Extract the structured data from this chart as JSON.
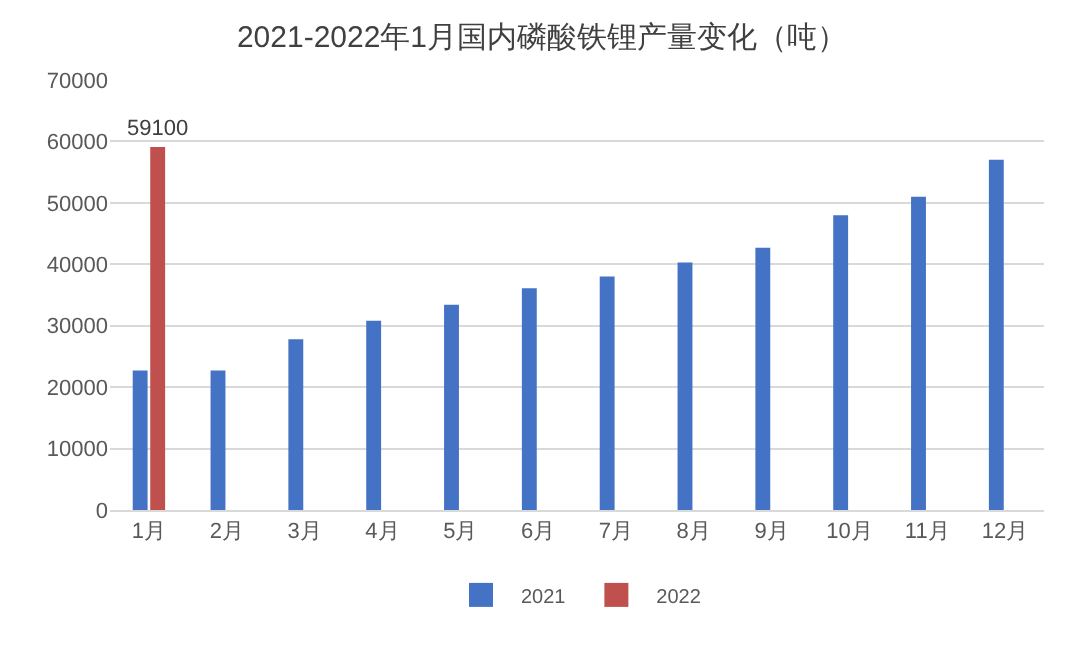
{
  "chart_data": {
    "type": "bar",
    "title": "2021-2022年1月国内磷酸铁锂产量变化（吨）",
    "categories": [
      "1月",
      "2月",
      "3月",
      "4月",
      "5月",
      "6月",
      "7月",
      "8月",
      "9月",
      "10月",
      "11月",
      "12月"
    ],
    "series": [
      {
        "name": "2021",
        "color": "#4472c4",
        "values": [
          22700,
          22700,
          27800,
          30800,
          33400,
          36100,
          38000,
          40300,
          42700,
          48000,
          51000,
          57000
        ]
      },
      {
        "name": "2022",
        "color": "#c0504d",
        "values": [
          59100,
          null,
          null,
          null,
          null,
          null,
          null,
          null,
          null,
          null,
          null,
          null
        ],
        "value_labels": [
          "59100",
          null,
          null,
          null,
          null,
          null,
          null,
          null,
          null,
          null,
          null,
          null
        ]
      }
    ],
    "ylim": [
      0,
      70000
    ],
    "yticks": [
      0,
      10000,
      20000,
      30000,
      40000,
      50000,
      60000,
      70000
    ],
    "grid": "y",
    "legend": "bottom"
  }
}
